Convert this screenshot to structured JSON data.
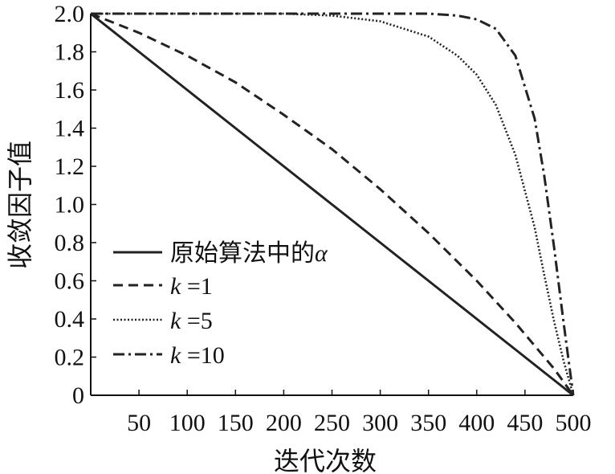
{
  "chart_data": {
    "type": "line",
    "title": "",
    "xlabel": "迭代次数",
    "ylabel": "收敛因子值",
    "xlim": [
      0,
      500
    ],
    "ylim": [
      0,
      2.0
    ],
    "x_ticks": [
      50,
      100,
      150,
      200,
      250,
      300,
      350,
      400,
      450,
      500
    ],
    "x_tick_labels": [
      "50",
      "100",
      "150",
      "200",
      "250",
      "300",
      "350",
      "400",
      "450",
      "500"
    ],
    "y_ticks": [
      0,
      0.2,
      0.4,
      0.6,
      0.8,
      1.0,
      1.2,
      1.4,
      1.6,
      1.8,
      2.0
    ],
    "y_tick_labels": [
      "0",
      "0.2",
      "0.4",
      "0.6",
      "0.8",
      "1.0",
      "1.2",
      "1.4",
      "1.6",
      "1.8",
      "2.0"
    ],
    "grid": false,
    "legend_position": "lower-left",
    "x": [
      0,
      50,
      100,
      150,
      200,
      250,
      300,
      350,
      380,
      400,
      420,
      440,
      460,
      470,
      480,
      490,
      495,
      500
    ],
    "series": [
      {
        "name": "原始算法中的α",
        "name_text": "原始算法中的",
        "name_symbol": "α",
        "style": "solid",
        "values": [
          2.0,
          1.8,
          1.6,
          1.4,
          1.2,
          1.0,
          0.8,
          0.6,
          0.48,
          0.4,
          0.32,
          0.24,
          0.16,
          0.12,
          0.08,
          0.04,
          0.02,
          0.0
        ]
      },
      {
        "name": "k =1",
        "name_text": "=1",
        "name_symbol": "k",
        "style": "dashed",
        "values": [
          2.0,
          1.9,
          1.78,
          1.64,
          1.47,
          1.29,
          1.08,
          0.85,
          0.7,
          0.6,
          0.49,
          0.38,
          0.26,
          0.2,
          0.14,
          0.07,
          0.035,
          0.0
        ]
      },
      {
        "name": "k =5",
        "name_text": "=5",
        "name_symbol": "k",
        "style": "dotted",
        "values": [
          2.0,
          2.0,
          2.0,
          2.0,
          2.0,
          1.99,
          1.96,
          1.88,
          1.78,
          1.68,
          1.52,
          1.26,
          0.88,
          0.63,
          0.39,
          0.18,
          0.09,
          0.0
        ]
      },
      {
        "name": "k =10",
        "name_text": "=10",
        "name_symbol": "k",
        "style": "dashdot",
        "values": [
          2.0,
          2.0,
          2.0,
          2.0,
          2.0,
          2.0,
          2.0,
          2.0,
          1.99,
          1.97,
          1.92,
          1.78,
          1.45,
          1.15,
          0.78,
          0.38,
          0.19,
          0.0
        ]
      }
    ]
  }
}
